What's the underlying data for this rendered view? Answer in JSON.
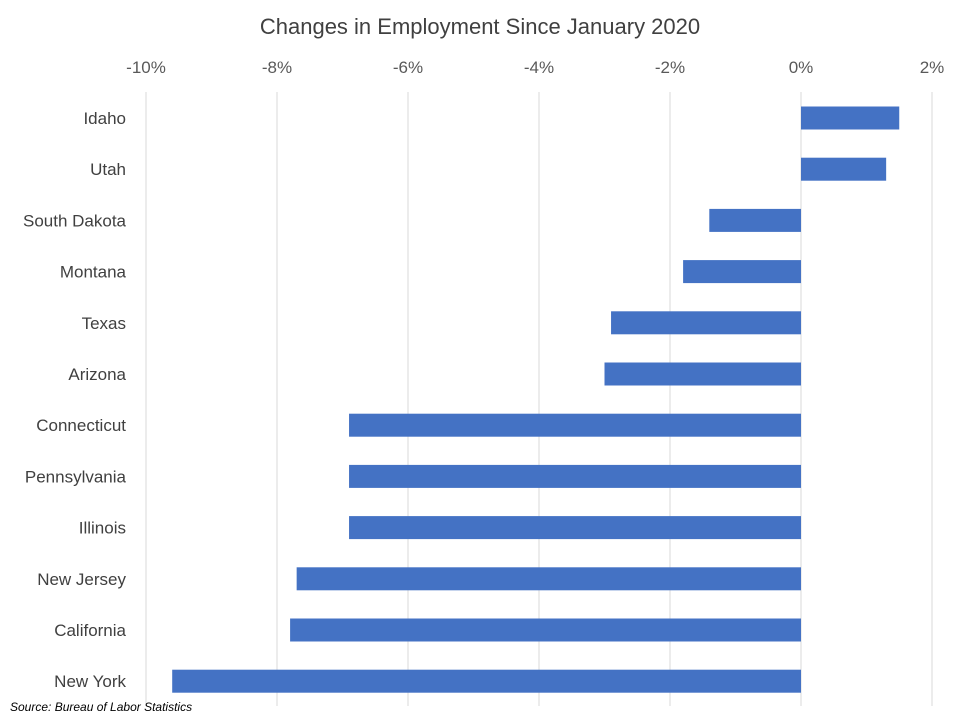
{
  "chart_data": {
    "type": "bar",
    "orientation": "horizontal",
    "title": "Changes in Employment Since January 2020",
    "xlabel": "",
    "ylabel": "",
    "xlim": [
      -10,
      2
    ],
    "x_ticks": [
      -10,
      -8,
      -6,
      -4,
      -2,
      0,
      2
    ],
    "x_tick_labels": [
      "-10%",
      "-8%",
      "-6%",
      "-4%",
      "-2%",
      "0%",
      "2%"
    ],
    "x_axis_position": "top",
    "grid": "vertical",
    "legend": "none",
    "categories": [
      "Idaho",
      "Utah",
      "South Dakota",
      "Montana",
      "Texas",
      "Arizona",
      "Connecticut",
      "Pennsylvania",
      "Illinois",
      "New Jersey",
      "California",
      "New York"
    ],
    "values": [
      1.5,
      1.3,
      -1.4,
      -1.8,
      -2.9,
      -3.0,
      -6.9,
      -6.9,
      -6.9,
      -7.7,
      -7.8,
      -9.6
    ],
    "bar_color": "#4472c4",
    "source": "Source: Bureau of Labor Statistics"
  }
}
